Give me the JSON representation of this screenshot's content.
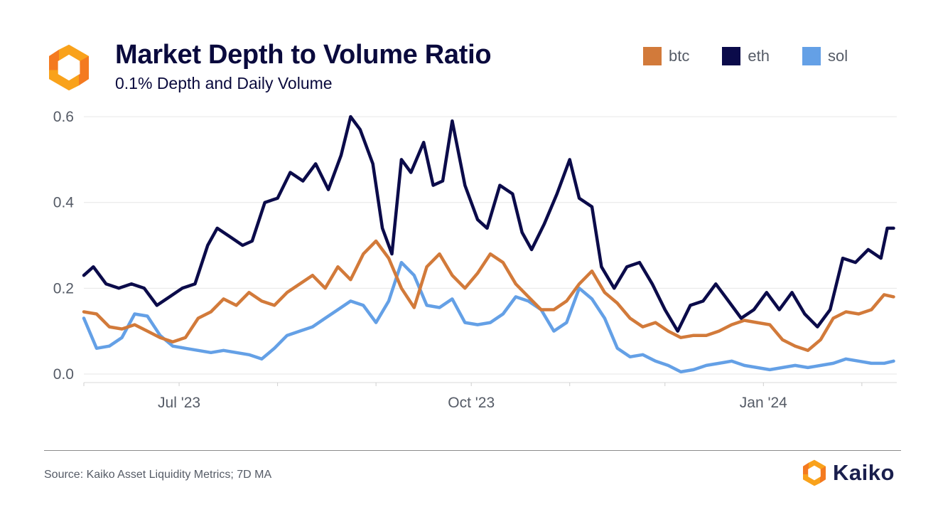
{
  "header": {
    "title": "Market Depth to Volume Ratio",
    "subtitle": "0.1% Depth and Daily Volume"
  },
  "legend": [
    {
      "label": "btc",
      "color": "#d27a3a"
    },
    {
      "label": "eth",
      "color": "#0b0b4a"
    },
    {
      "label": "sol",
      "color": "#64a0e6"
    }
  ],
  "footer": {
    "source": "Source: Kaiko Asset Liquidity Metrics; 7D MA",
    "brand": "Kaiko"
  },
  "logo_icon": "kaiko-logo-icon",
  "chart_data": {
    "type": "line",
    "title": "Market Depth to Volume Ratio",
    "subtitle": "0.1% Depth and Daily Volume",
    "xlabel": "",
    "ylabel": "",
    "x_range": [
      "2023-06-01",
      "2024-02-12"
    ],
    "ylim": [
      -0.02,
      0.62
    ],
    "y_ticks": [
      {
        "value": 0.0,
        "label": "0.0"
      },
      {
        "value": 0.2,
        "label": "0.2"
      },
      {
        "value": 0.4,
        "label": "0.4"
      },
      {
        "value": 0.6,
        "label": "0.6"
      }
    ],
    "x_tick_labels": [
      {
        "date": "2023-07-01",
        "label": "Jul '23"
      },
      {
        "date": "2023-10-01",
        "label": "Oct '23"
      },
      {
        "date": "2024-01-01",
        "label": "Jan '24"
      }
    ],
    "grid": "horizontal",
    "legend_position": "top-right",
    "series": [
      {
        "name": "btc",
        "color": "#d27a3a",
        "points": [
          [
            "2023-06-01",
            0.145
          ],
          [
            "2023-06-05",
            0.14
          ],
          [
            "2023-06-09",
            0.11
          ],
          [
            "2023-06-13",
            0.105
          ],
          [
            "2023-06-17",
            0.115
          ],
          [
            "2023-06-21",
            0.1
          ],
          [
            "2023-06-25",
            0.085
          ],
          [
            "2023-06-29",
            0.075
          ],
          [
            "2023-07-03",
            0.085
          ],
          [
            "2023-07-07",
            0.13
          ],
          [
            "2023-07-11",
            0.145
          ],
          [
            "2023-07-15",
            0.175
          ],
          [
            "2023-07-19",
            0.16
          ],
          [
            "2023-07-23",
            0.19
          ],
          [
            "2023-07-27",
            0.17
          ],
          [
            "2023-07-31",
            0.16
          ],
          [
            "2023-08-04",
            0.19
          ],
          [
            "2023-08-08",
            0.21
          ],
          [
            "2023-08-12",
            0.23
          ],
          [
            "2023-08-16",
            0.2
          ],
          [
            "2023-08-20",
            0.25
          ],
          [
            "2023-08-24",
            0.22
          ],
          [
            "2023-08-28",
            0.28
          ],
          [
            "2023-09-01",
            0.31
          ],
          [
            "2023-09-05",
            0.27
          ],
          [
            "2023-09-09",
            0.2
          ],
          [
            "2023-09-13",
            0.155
          ],
          [
            "2023-09-17",
            0.25
          ],
          [
            "2023-09-21",
            0.28
          ],
          [
            "2023-09-25",
            0.23
          ],
          [
            "2023-09-29",
            0.2
          ],
          [
            "2023-10-03",
            0.235
          ],
          [
            "2023-10-07",
            0.28
          ],
          [
            "2023-10-11",
            0.26
          ],
          [
            "2023-10-15",
            0.21
          ],
          [
            "2023-10-19",
            0.18
          ],
          [
            "2023-10-23",
            0.15
          ],
          [
            "2023-10-27",
            0.15
          ],
          [
            "2023-10-31",
            0.17
          ],
          [
            "2023-11-04",
            0.21
          ],
          [
            "2023-11-08",
            0.24
          ],
          [
            "2023-11-12",
            0.19
          ],
          [
            "2023-11-16",
            0.165
          ],
          [
            "2023-11-20",
            0.13
          ],
          [
            "2023-11-24",
            0.11
          ],
          [
            "2023-11-28",
            0.12
          ],
          [
            "2023-12-02",
            0.1
          ],
          [
            "2023-12-06",
            0.085
          ],
          [
            "2023-12-10",
            0.09
          ],
          [
            "2023-12-14",
            0.09
          ],
          [
            "2023-12-18",
            0.1
          ],
          [
            "2023-12-22",
            0.115
          ],
          [
            "2023-12-26",
            0.125
          ],
          [
            "2023-12-30",
            0.12
          ],
          [
            "2024-01-03",
            0.115
          ],
          [
            "2024-01-07",
            0.08
          ],
          [
            "2024-01-11",
            0.065
          ],
          [
            "2024-01-15",
            0.055
          ],
          [
            "2024-01-19",
            0.08
          ],
          [
            "2024-01-23",
            0.13
          ],
          [
            "2024-01-27",
            0.145
          ],
          [
            "2024-01-31",
            0.14
          ],
          [
            "2024-02-04",
            0.15
          ],
          [
            "2024-02-08",
            0.185
          ],
          [
            "2024-02-11",
            0.18
          ]
        ]
      },
      {
        "name": "eth",
        "color": "#0b0b4a",
        "points": [
          [
            "2023-06-01",
            0.23
          ],
          [
            "2023-06-04",
            0.25
          ],
          [
            "2023-06-08",
            0.21
          ],
          [
            "2023-06-12",
            0.2
          ],
          [
            "2023-06-16",
            0.21
          ],
          [
            "2023-06-20",
            0.2
          ],
          [
            "2023-06-24",
            0.16
          ],
          [
            "2023-06-28",
            0.18
          ],
          [
            "2023-07-02",
            0.2
          ],
          [
            "2023-07-06",
            0.21
          ],
          [
            "2023-07-10",
            0.3
          ],
          [
            "2023-07-13",
            0.34
          ],
          [
            "2023-07-17",
            0.32
          ],
          [
            "2023-07-21",
            0.3
          ],
          [
            "2023-07-24",
            0.31
          ],
          [
            "2023-07-28",
            0.4
          ],
          [
            "2023-08-01",
            0.41
          ],
          [
            "2023-08-05",
            0.47
          ],
          [
            "2023-08-09",
            0.45
          ],
          [
            "2023-08-13",
            0.49
          ],
          [
            "2023-08-17",
            0.43
          ],
          [
            "2023-08-21",
            0.51
          ],
          [
            "2023-08-24",
            0.6
          ],
          [
            "2023-08-27",
            0.57
          ],
          [
            "2023-08-31",
            0.49
          ],
          [
            "2023-09-03",
            0.34
          ],
          [
            "2023-09-06",
            0.28
          ],
          [
            "2023-09-09",
            0.5
          ],
          [
            "2023-09-12",
            0.47
          ],
          [
            "2023-09-16",
            0.54
          ],
          [
            "2023-09-19",
            0.44
          ],
          [
            "2023-09-22",
            0.45
          ],
          [
            "2023-09-25",
            0.59
          ],
          [
            "2023-09-29",
            0.44
          ],
          [
            "2023-10-03",
            0.36
          ],
          [
            "2023-10-06",
            0.34
          ],
          [
            "2023-10-10",
            0.44
          ],
          [
            "2023-10-14",
            0.42
          ],
          [
            "2023-10-17",
            0.33
          ],
          [
            "2023-10-20",
            0.29
          ],
          [
            "2023-10-24",
            0.35
          ],
          [
            "2023-10-28",
            0.42
          ],
          [
            "2023-11-01",
            0.5
          ],
          [
            "2023-11-04",
            0.41
          ],
          [
            "2023-11-08",
            0.39
          ],
          [
            "2023-11-11",
            0.25
          ],
          [
            "2023-11-15",
            0.2
          ],
          [
            "2023-11-19",
            0.25
          ],
          [
            "2023-11-23",
            0.26
          ],
          [
            "2023-11-27",
            0.21
          ],
          [
            "2023-12-01",
            0.15
          ],
          [
            "2023-12-05",
            0.1
          ],
          [
            "2023-12-09",
            0.16
          ],
          [
            "2023-12-13",
            0.17
          ],
          [
            "2023-12-17",
            0.21
          ],
          [
            "2023-12-21",
            0.17
          ],
          [
            "2023-12-25",
            0.13
          ],
          [
            "2023-12-29",
            0.15
          ],
          [
            "2024-01-02",
            0.19
          ],
          [
            "2024-01-06",
            0.15
          ],
          [
            "2024-01-10",
            0.19
          ],
          [
            "2024-01-14",
            0.14
          ],
          [
            "2024-01-18",
            0.11
          ],
          [
            "2024-01-22",
            0.15
          ],
          [
            "2024-01-26",
            0.27
          ],
          [
            "2024-01-30",
            0.26
          ],
          [
            "2024-02-03",
            0.29
          ],
          [
            "2024-02-07",
            0.27
          ],
          [
            "2024-02-09",
            0.34
          ],
          [
            "2024-02-11",
            0.34
          ]
        ]
      },
      {
        "name": "sol",
        "color": "#64a0e6",
        "points": [
          [
            "2023-06-01",
            0.13
          ],
          [
            "2023-06-05",
            0.06
          ],
          [
            "2023-06-09",
            0.065
          ],
          [
            "2023-06-13",
            0.085
          ],
          [
            "2023-06-17",
            0.14
          ],
          [
            "2023-06-21",
            0.135
          ],
          [
            "2023-06-25",
            0.09
          ],
          [
            "2023-06-29",
            0.065
          ],
          [
            "2023-07-03",
            0.06
          ],
          [
            "2023-07-07",
            0.055
          ],
          [
            "2023-07-11",
            0.05
          ],
          [
            "2023-07-15",
            0.055
          ],
          [
            "2023-07-19",
            0.05
          ],
          [
            "2023-07-23",
            0.045
          ],
          [
            "2023-07-27",
            0.035
          ],
          [
            "2023-07-31",
            0.06
          ],
          [
            "2023-08-04",
            0.09
          ],
          [
            "2023-08-08",
            0.1
          ],
          [
            "2023-08-12",
            0.11
          ],
          [
            "2023-08-16",
            0.13
          ],
          [
            "2023-08-20",
            0.15
          ],
          [
            "2023-08-24",
            0.17
          ],
          [
            "2023-08-28",
            0.16
          ],
          [
            "2023-09-01",
            0.12
          ],
          [
            "2023-09-05",
            0.17
          ],
          [
            "2023-09-09",
            0.26
          ],
          [
            "2023-09-13",
            0.23
          ],
          [
            "2023-09-17",
            0.16
          ],
          [
            "2023-09-21",
            0.155
          ],
          [
            "2023-09-25",
            0.175
          ],
          [
            "2023-09-29",
            0.12
          ],
          [
            "2023-10-03",
            0.115
          ],
          [
            "2023-10-07",
            0.12
          ],
          [
            "2023-10-11",
            0.14
          ],
          [
            "2023-10-15",
            0.18
          ],
          [
            "2023-10-19",
            0.17
          ],
          [
            "2023-10-23",
            0.15
          ],
          [
            "2023-10-27",
            0.1
          ],
          [
            "2023-10-31",
            0.12
          ],
          [
            "2023-11-04",
            0.2
          ],
          [
            "2023-11-08",
            0.175
          ],
          [
            "2023-11-12",
            0.13
          ],
          [
            "2023-11-16",
            0.06
          ],
          [
            "2023-11-20",
            0.04
          ],
          [
            "2023-11-24",
            0.045
          ],
          [
            "2023-11-28",
            0.03
          ],
          [
            "2023-12-02",
            0.02
          ],
          [
            "2023-12-06",
            0.005
          ],
          [
            "2023-12-10",
            0.01
          ],
          [
            "2023-12-14",
            0.02
          ],
          [
            "2023-12-18",
            0.025
          ],
          [
            "2023-12-22",
            0.03
          ],
          [
            "2023-12-26",
            0.02
          ],
          [
            "2023-12-30",
            0.015
          ],
          [
            "2024-01-03",
            0.01
          ],
          [
            "2024-01-07",
            0.015
          ],
          [
            "2024-01-11",
            0.02
          ],
          [
            "2024-01-15",
            0.015
          ],
          [
            "2024-01-19",
            0.02
          ],
          [
            "2024-01-23",
            0.025
          ],
          [
            "2024-01-27",
            0.035
          ],
          [
            "2024-01-31",
            0.03
          ],
          [
            "2024-02-04",
            0.025
          ],
          [
            "2024-02-08",
            0.025
          ],
          [
            "2024-02-11",
            0.03
          ]
        ]
      }
    ]
  }
}
